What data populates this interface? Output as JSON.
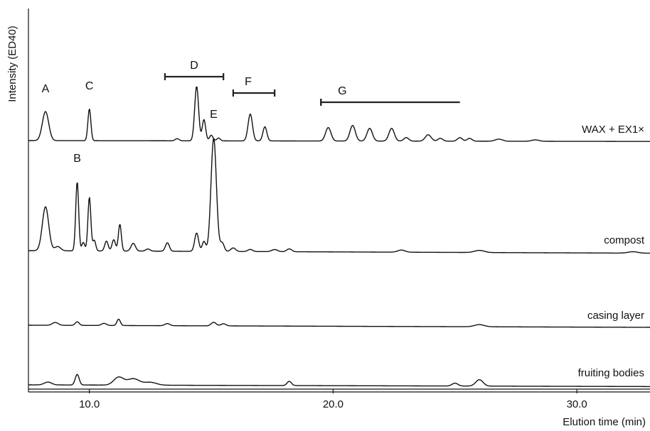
{
  "chart_data": {
    "type": "line",
    "xlabel": "Elution time (min)",
    "ylabel": "Intensity (ED40)",
    "xlim": [
      7.5,
      33.0
    ],
    "xticks": [
      {
        "value": 10.0,
        "label": "10.0"
      },
      {
        "value": 20.0,
        "label": "20.0"
      },
      {
        "value": 30.0,
        "label": "30.0"
      }
    ],
    "series": [
      {
        "name": "WAX + EX1×",
        "peaks": [
          {
            "t": 8.2,
            "h": 41,
            "w": 0.13
          },
          {
            "t": 10.0,
            "h": 45,
            "w": 0.06
          },
          {
            "t": 13.6,
            "h": 3,
            "w": 0.08
          },
          {
            "t": 14.4,
            "h": 77,
            "w": 0.08
          },
          {
            "t": 14.7,
            "h": 30,
            "w": 0.07
          },
          {
            "t": 15.0,
            "h": 8,
            "w": 0.07
          },
          {
            "t": 15.3,
            "h": 4,
            "w": 0.07
          },
          {
            "t": 16.6,
            "h": 38,
            "w": 0.09
          },
          {
            "t": 17.2,
            "h": 20,
            "w": 0.08
          },
          {
            "t": 19.8,
            "h": 19,
            "w": 0.11
          },
          {
            "t": 20.8,
            "h": 22,
            "w": 0.11
          },
          {
            "t": 21.5,
            "h": 18,
            "w": 0.11
          },
          {
            "t": 22.4,
            "h": 18,
            "w": 0.11
          },
          {
            "t": 23.0,
            "h": 5,
            "w": 0.1
          },
          {
            "t": 23.9,
            "h": 9,
            "w": 0.12
          },
          {
            "t": 24.4,
            "h": 4,
            "w": 0.1
          },
          {
            "t": 25.2,
            "h": 5,
            "w": 0.1
          },
          {
            "t": 25.6,
            "h": 4,
            "w": 0.1
          },
          {
            "t": 26.8,
            "h": 3,
            "w": 0.15
          },
          {
            "t": 28.3,
            "h": 2,
            "w": 0.15
          }
        ]
      },
      {
        "name": "compost",
        "peaks": [
          {
            "t": 8.2,
            "h": 62,
            "w": 0.13
          },
          {
            "t": 8.7,
            "h": 6,
            "w": 0.12
          },
          {
            "t": 9.5,
            "h": 98,
            "w": 0.06
          },
          {
            "t": 9.75,
            "h": 12,
            "w": 0.06
          },
          {
            "t": 10.0,
            "h": 76,
            "w": 0.06
          },
          {
            "t": 10.2,
            "h": 15,
            "w": 0.06
          },
          {
            "t": 10.7,
            "h": 14,
            "w": 0.07
          },
          {
            "t": 11.0,
            "h": 16,
            "w": 0.07
          },
          {
            "t": 11.25,
            "h": 38,
            "w": 0.06
          },
          {
            "t": 11.8,
            "h": 11,
            "w": 0.09
          },
          {
            "t": 12.4,
            "h": 3,
            "w": 0.09
          },
          {
            "t": 13.2,
            "h": 12,
            "w": 0.08
          },
          {
            "t": 14.4,
            "h": 26,
            "w": 0.08
          },
          {
            "t": 14.7,
            "h": 14,
            "w": 0.07
          },
          {
            "t": 15.1,
            "h": 160,
            "w": 0.11
          },
          {
            "t": 15.45,
            "h": 12,
            "w": 0.08
          },
          {
            "t": 15.9,
            "h": 5,
            "w": 0.1
          },
          {
            "t": 16.6,
            "h": 3,
            "w": 0.1
          },
          {
            "t": 17.6,
            "h": 3,
            "w": 0.12
          },
          {
            "t": 18.2,
            "h": 4,
            "w": 0.1
          },
          {
            "t": 22.8,
            "h": 3,
            "w": 0.15
          },
          {
            "t": 26.0,
            "h": 3,
            "w": 0.2
          },
          {
            "t": 32.3,
            "h": 2,
            "w": 0.2
          }
        ]
      },
      {
        "name": "casing layer",
        "peaks": [
          {
            "t": 8.6,
            "h": 4,
            "w": 0.12
          },
          {
            "t": 9.5,
            "h": 5,
            "w": 0.08
          },
          {
            "t": 10.6,
            "h": 3,
            "w": 0.1
          },
          {
            "t": 11.2,
            "h": 9,
            "w": 0.07
          },
          {
            "t": 13.2,
            "h": 3,
            "w": 0.1
          },
          {
            "t": 15.1,
            "h": 5,
            "w": 0.1
          },
          {
            "t": 15.5,
            "h": 3,
            "w": 0.1
          },
          {
            "t": 26.0,
            "h": 3,
            "w": 0.2
          }
        ]
      },
      {
        "name": "fruiting bodies",
        "peaks": [
          {
            "t": 8.3,
            "h": 4,
            "w": 0.15
          },
          {
            "t": 9.5,
            "h": 15,
            "w": 0.08
          },
          {
            "t": 11.2,
            "h": 11,
            "w": 0.2
          },
          {
            "t": 11.8,
            "h": 9,
            "w": 0.25
          },
          {
            "t": 12.5,
            "h": 4,
            "w": 0.25
          },
          {
            "t": 18.2,
            "h": 6,
            "w": 0.09
          },
          {
            "t": 25.0,
            "h": 4,
            "w": 0.12
          },
          {
            "t": 26.0,
            "h": 9,
            "w": 0.15
          }
        ]
      }
    ],
    "annotations": [
      {
        "label": "A",
        "type": "peak",
        "t": 8.2,
        "series": 0
      },
      {
        "label": "B",
        "type": "peak",
        "t": 9.5,
        "series": 1
      },
      {
        "label": "C",
        "type": "peak",
        "t": 10.0,
        "series": 0
      },
      {
        "label": "D",
        "type": "range",
        "t0": 13.1,
        "t1": 15.5
      },
      {
        "label": "E",
        "type": "peak",
        "t": 15.1,
        "series": 1
      },
      {
        "label": "F",
        "type": "range",
        "t0": 15.9,
        "t1": 17.6
      },
      {
        "label": "G",
        "type": "range",
        "t0": 19.5,
        "t1": 25.2
      }
    ]
  }
}
